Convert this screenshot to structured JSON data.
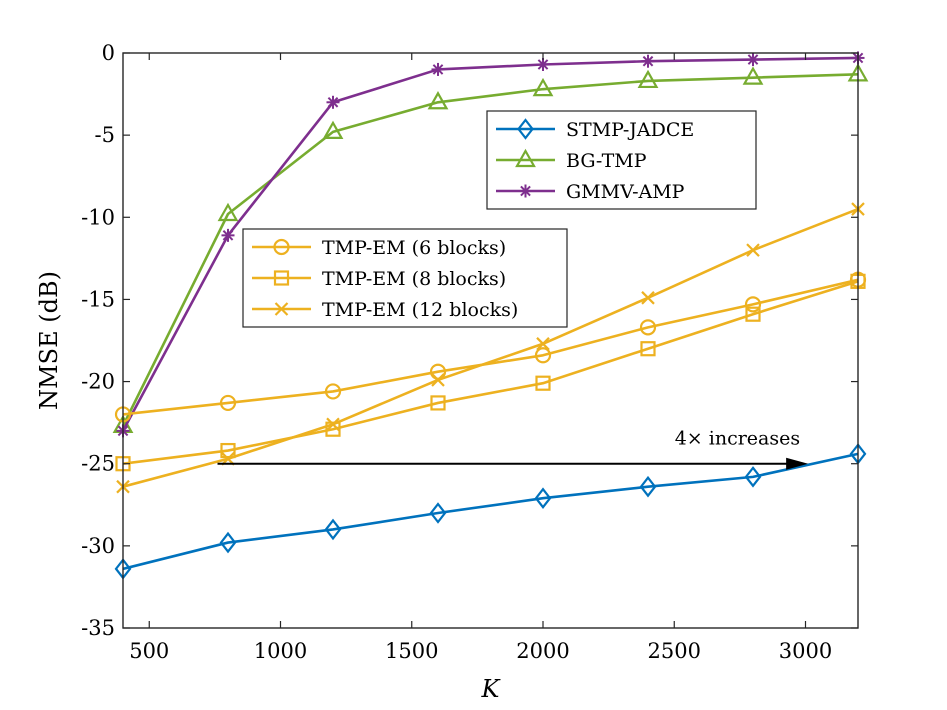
{
  "chart_data": {
    "type": "line",
    "title": "",
    "xlabel": "K",
    "ylabel": "NMSE (dB)",
    "xlim": [
      400,
      3200
    ],
    "ylim": [
      -35,
      0
    ],
    "x_ticks": [
      500,
      1000,
      1500,
      2000,
      2500,
      3000
    ],
    "x_tick_labels": [
      "500",
      "1000",
      "1500",
      "2000",
      "2500",
      "3000"
    ],
    "y_ticks": [
      0,
      -5,
      -10,
      -15,
      -20,
      -25,
      -30,
      -35
    ],
    "y_tick_labels": [
      "0",
      "-5",
      "-10",
      "-15",
      "-20",
      "-25",
      "-30",
      "-35"
    ],
    "grid": false,
    "x": [
      400,
      800,
      1200,
      1600,
      2000,
      2400,
      2800,
      3200
    ],
    "series": [
      {
        "name": "STMP-JADCE",
        "color": "#0072BD",
        "marker": "diamond",
        "values": [
          -31.4,
          -29.8,
          -29.0,
          -28.0,
          -27.1,
          -26.4,
          -25.8,
          -24.4
        ]
      },
      {
        "name": "BG-TMP",
        "color": "#77AC30",
        "marker": "triangle",
        "values": [
          -22.7,
          -9.8,
          -4.8,
          -3.0,
          -2.2,
          -1.7,
          -1.5,
          -1.3
        ]
      },
      {
        "name": "GMMV-AMP",
        "color": "#7E2F8E",
        "marker": "star",
        "values": [
          -23.0,
          -11.1,
          -3.0,
          -1.0,
          -0.7,
          -0.5,
          -0.4,
          -0.3
        ]
      },
      {
        "name": "TMP-EM (6 blocks)",
        "color": "#EDB120",
        "marker": "circle",
        "values": [
          -22.0,
          -21.3,
          -20.6,
          -19.4,
          -18.4,
          -16.7,
          -15.3,
          -13.8
        ]
      },
      {
        "name": "TMP-EM (8 blocks)",
        "color": "#EDB120",
        "marker": "square",
        "values": [
          -25.0,
          -24.2,
          -22.9,
          -21.3,
          -20.1,
          -18.0,
          -15.9,
          -13.9
        ]
      },
      {
        "name": "TMP-EM (12 blocks)",
        "color": "#EDB120",
        "marker": "x",
        "values": [
          -26.4,
          -24.7,
          -22.6,
          -19.9,
          -17.7,
          -14.9,
          -12.0,
          -9.5
        ]
      }
    ],
    "legends": [
      {
        "placement": "upper-middle",
        "entries": [
          "STMP-JADCE",
          "BG-TMP",
          "GMMV-AMP"
        ]
      },
      {
        "placement": "middle-left",
        "entries": [
          "TMP-EM (6 blocks)",
          "TMP-EM (8 blocks)",
          "TMP-EM (12 blocks)"
        ]
      }
    ],
    "annotation": {
      "text": "4× increases",
      "arrow_from": {
        "x": 760,
        "y": -25.0
      },
      "arrow_to": {
        "x": 3010,
        "y": -25.0
      }
    }
  }
}
